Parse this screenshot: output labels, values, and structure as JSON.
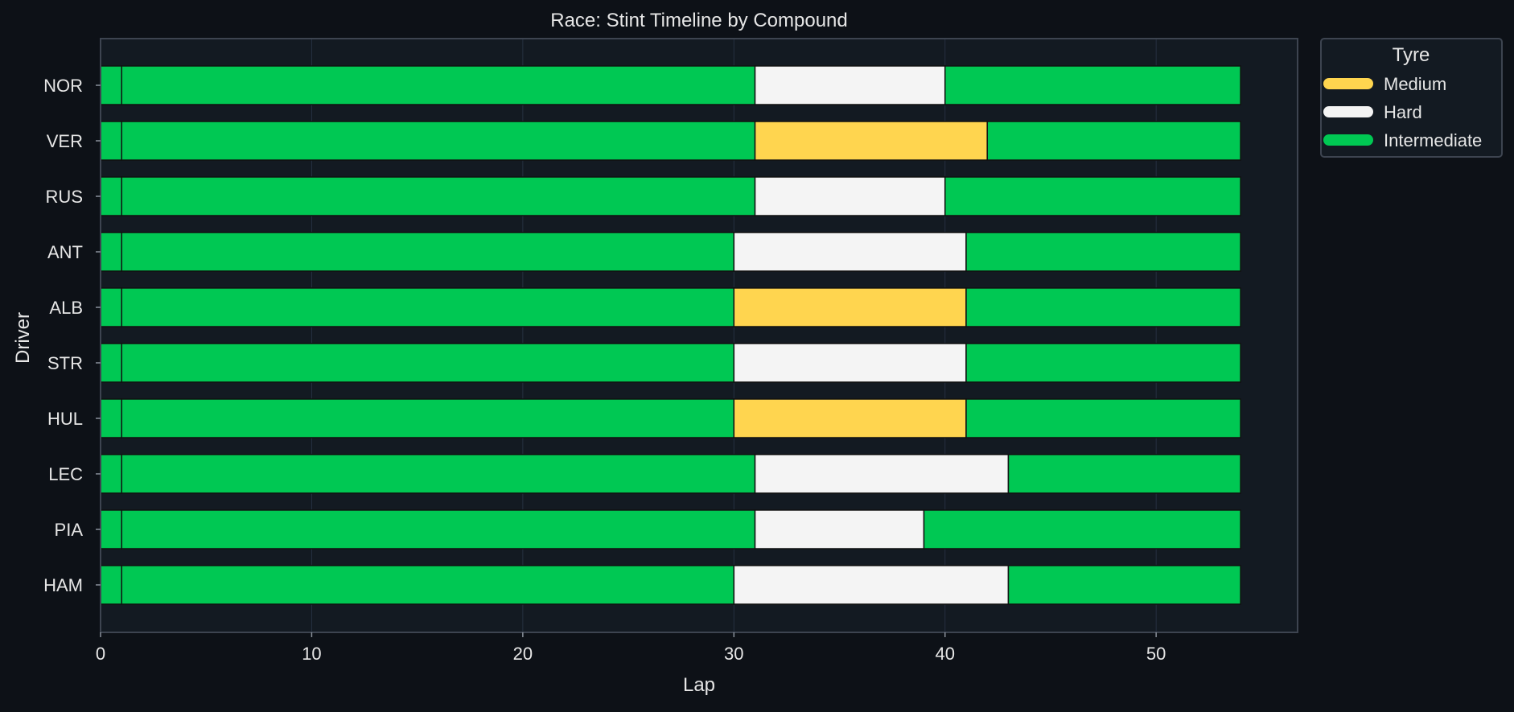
{
  "chart_data": {
    "type": "bar",
    "orientation": "horizontal",
    "title": "Race: Stint Timeline by Compound",
    "xlabel": "Lap",
    "ylabel": "Driver",
    "xlim": [
      0,
      56.7
    ],
    "xticks": [
      0,
      10,
      20,
      30,
      40,
      50
    ],
    "grid": true,
    "legend": {
      "title": "Tyre",
      "placement": "outside-top-right",
      "entries": [
        {
          "label": "Medium",
          "color": "#ffd54f"
        },
        {
          "label": "Hard",
          "color": "#f4f4f4"
        },
        {
          "label": "Intermediate",
          "color": "#00c853"
        }
      ]
    },
    "compound_colors": {
      "Medium": "#ffd54f",
      "Hard": "#f4f4f4",
      "Intermediate": "#00c853"
    },
    "drivers": [
      "NOR",
      "VER",
      "RUS",
      "ANT",
      "ALB",
      "STR",
      "HUL",
      "LEC",
      "PIA",
      "HAM"
    ],
    "stints": [
      {
        "driver": "NOR",
        "segments": [
          {
            "compound": "Intermediate",
            "start": 0,
            "end": 1
          },
          {
            "compound": "Intermediate",
            "start": 1,
            "end": 31
          },
          {
            "compound": "Hard",
            "start": 31,
            "end": 40
          },
          {
            "compound": "Intermediate",
            "start": 40,
            "end": 54
          }
        ]
      },
      {
        "driver": "VER",
        "segments": [
          {
            "compound": "Intermediate",
            "start": 0,
            "end": 1
          },
          {
            "compound": "Intermediate",
            "start": 1,
            "end": 31
          },
          {
            "compound": "Medium",
            "start": 31,
            "end": 42
          },
          {
            "compound": "Intermediate",
            "start": 42,
            "end": 54
          }
        ]
      },
      {
        "driver": "RUS",
        "segments": [
          {
            "compound": "Intermediate",
            "start": 0,
            "end": 1
          },
          {
            "compound": "Intermediate",
            "start": 1,
            "end": 31
          },
          {
            "compound": "Hard",
            "start": 31,
            "end": 40
          },
          {
            "compound": "Intermediate",
            "start": 40,
            "end": 54
          }
        ]
      },
      {
        "driver": "ANT",
        "segments": [
          {
            "compound": "Intermediate",
            "start": 0,
            "end": 1
          },
          {
            "compound": "Intermediate",
            "start": 1,
            "end": 30
          },
          {
            "compound": "Hard",
            "start": 30,
            "end": 41
          },
          {
            "compound": "Intermediate",
            "start": 41,
            "end": 54
          }
        ]
      },
      {
        "driver": "ALB",
        "segments": [
          {
            "compound": "Intermediate",
            "start": 0,
            "end": 1
          },
          {
            "compound": "Intermediate",
            "start": 1,
            "end": 30
          },
          {
            "compound": "Medium",
            "start": 30,
            "end": 41
          },
          {
            "compound": "Intermediate",
            "start": 41,
            "end": 54
          }
        ]
      },
      {
        "driver": "STR",
        "segments": [
          {
            "compound": "Intermediate",
            "start": 0,
            "end": 1
          },
          {
            "compound": "Intermediate",
            "start": 1,
            "end": 30
          },
          {
            "compound": "Hard",
            "start": 30,
            "end": 41
          },
          {
            "compound": "Intermediate",
            "start": 41,
            "end": 54
          }
        ]
      },
      {
        "driver": "HUL",
        "segments": [
          {
            "compound": "Intermediate",
            "start": 0,
            "end": 1
          },
          {
            "compound": "Intermediate",
            "start": 1,
            "end": 30
          },
          {
            "compound": "Medium",
            "start": 30,
            "end": 41
          },
          {
            "compound": "Intermediate",
            "start": 41,
            "end": 54
          }
        ]
      },
      {
        "driver": "LEC",
        "segments": [
          {
            "compound": "Intermediate",
            "start": 0,
            "end": 1
          },
          {
            "compound": "Intermediate",
            "start": 1,
            "end": 31
          },
          {
            "compound": "Hard",
            "start": 31,
            "end": 43
          },
          {
            "compound": "Intermediate",
            "start": 43,
            "end": 54
          }
        ]
      },
      {
        "driver": "PIA",
        "segments": [
          {
            "compound": "Intermediate",
            "start": 0,
            "end": 1
          },
          {
            "compound": "Intermediate",
            "start": 1,
            "end": 31
          },
          {
            "compound": "Hard",
            "start": 31,
            "end": 39
          },
          {
            "compound": "Intermediate",
            "start": 39,
            "end": 54
          }
        ]
      },
      {
        "driver": "HAM",
        "segments": [
          {
            "compound": "Intermediate",
            "start": 0,
            "end": 1
          },
          {
            "compound": "Intermediate",
            "start": 1,
            "end": 30
          },
          {
            "compound": "Hard",
            "start": 30,
            "end": 43
          },
          {
            "compound": "Intermediate",
            "start": 43,
            "end": 54
          }
        ]
      }
    ]
  }
}
